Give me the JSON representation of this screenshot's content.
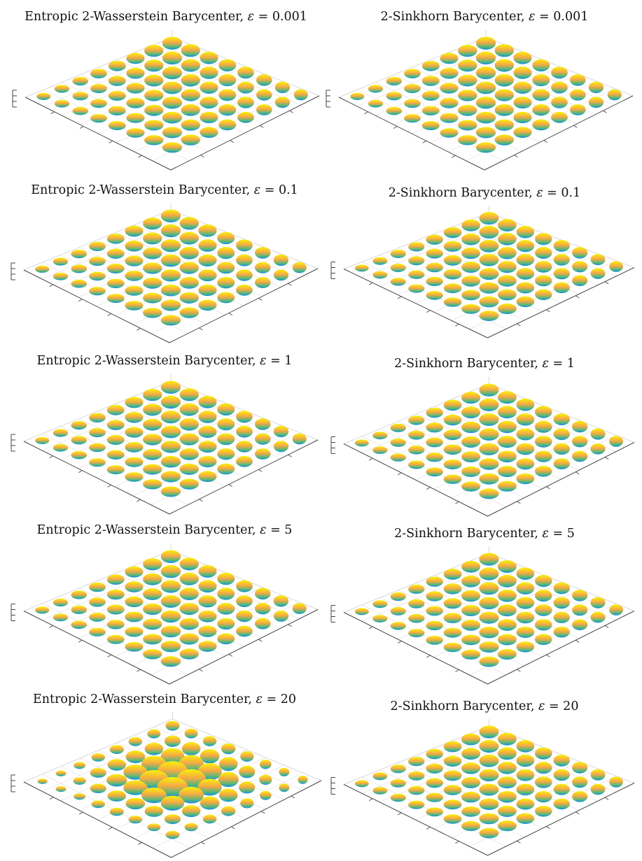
{
  "chart_data": [
    {
      "type": "3d-ellipsoid-grid",
      "title_prefix": "Entropic 2-Wasserstein Barycenter, ",
      "epsilon": "0.001",
      "grid": true,
      "rows": 8,
      "cols": 8
    },
    {
      "type": "3d-ellipsoid-grid",
      "title_prefix": "2-Sinkhorn Barycenter, ",
      "epsilon": "0.001",
      "grid": true,
      "rows": 8,
      "cols": 8
    },
    {
      "type": "3d-ellipsoid-grid",
      "title_prefix": "Entropic 2-Wasserstein Barycenter, ",
      "epsilon": "0.1",
      "grid": true,
      "rows": 8,
      "cols": 8
    },
    {
      "type": "3d-ellipsoid-grid",
      "title_prefix": "2-Sinkhorn Barycenter, ",
      "epsilon": "0.1",
      "grid": true,
      "rows": 8,
      "cols": 8
    },
    {
      "type": "3d-ellipsoid-grid",
      "title_prefix": "Entropic 2-Wasserstein Barycenter, ",
      "epsilon": "1",
      "grid": true,
      "rows": 8,
      "cols": 8
    },
    {
      "type": "3d-ellipsoid-grid",
      "title_prefix": "2-Sinkhorn Barycenter, ",
      "epsilon": "1",
      "grid": true,
      "rows": 8,
      "cols": 8
    },
    {
      "type": "3d-ellipsoid-grid",
      "title_prefix": "Entropic 2-Wasserstein Barycenter, ",
      "epsilon": "5",
      "grid": true,
      "rows": 8,
      "cols": 8
    },
    {
      "type": "3d-ellipsoid-grid",
      "title_prefix": "2-Sinkhorn Barycenter, ",
      "epsilon": "5",
      "grid": true,
      "rows": 8,
      "cols": 8
    },
    {
      "type": "3d-ellipsoid-grid",
      "title_prefix": "Entropic 2-Wasserstein Barycenter, ",
      "epsilon": "20",
      "grid": true,
      "rows": 8,
      "cols": 8
    },
    {
      "type": "3d-ellipsoid-grid",
      "title_prefix": "2-Sinkhorn Barycenter, ",
      "epsilon": "20",
      "grid": true,
      "rows": 8,
      "cols": 8
    }
  ],
  "colors": {
    "surface_top": "#f9f10a",
    "surface_mid": "#f6a943",
    "surface_base": "#58b87a",
    "surface_bottom": "#0f8fe0",
    "axis_line": "#444444",
    "grid_line": "#dddddd"
  }
}
